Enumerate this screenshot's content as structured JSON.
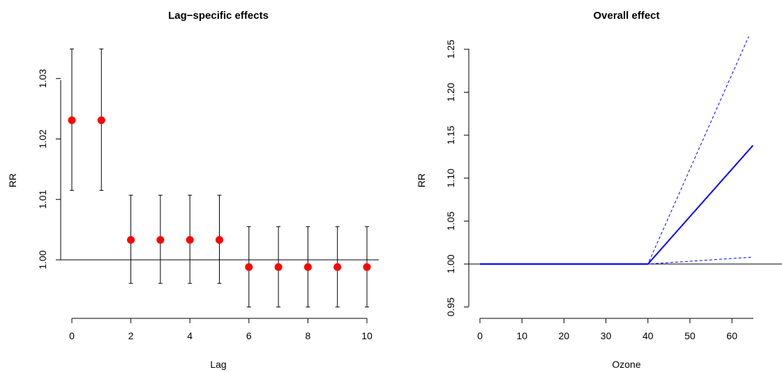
{
  "chart_data": [
    {
      "type": "scatter",
      "title": "Lag−specific effects",
      "xlabel": "Lag",
      "ylabel": "RR",
      "xlim": [
        0,
        10
      ],
      "ylim": [
        0.9977,
        1.0349
      ],
      "x_ticks": [
        0,
        2,
        4,
        6,
        8,
        10
      ],
      "y_ticks": [
        1.0,
        1.01,
        1.02,
        1.03
      ],
      "reference_line": 1.0,
      "point_color": "#ff0000",
      "error_bar_color": "#000000",
      "points": [
        {
          "x": 0,
          "y": 1.0231,
          "lower": 1.0115,
          "upper": 1.0349
        },
        {
          "x": 1,
          "y": 1.0231,
          "lower": 1.0115,
          "upper": 1.0349
        },
        {
          "x": 2,
          "y": 1.0033,
          "lower": 0.9961,
          "upper": 1.0107
        },
        {
          "x": 3,
          "y": 1.0033,
          "lower": 0.9961,
          "upper": 1.0107
        },
        {
          "x": 4,
          "y": 1.0033,
          "lower": 0.9961,
          "upper": 1.0107
        },
        {
          "x": 5,
          "y": 1.0033,
          "lower": 0.9961,
          "upper": 1.0107
        },
        {
          "x": 6,
          "y": 0.9988,
          "lower": 0.9922,
          "upper": 1.0055
        },
        {
          "x": 7,
          "y": 0.9988,
          "lower": 0.9922,
          "upper": 1.0055
        },
        {
          "x": 8,
          "y": 0.9988,
          "lower": 0.9922,
          "upper": 1.0055
        },
        {
          "x": 9,
          "y": 0.9988,
          "lower": 0.9922,
          "upper": 1.0055
        },
        {
          "x": 10,
          "y": 0.9988,
          "lower": 0.9922,
          "upper": 1.0055
        }
      ]
    },
    {
      "type": "line",
      "title": "Overall effect",
      "xlabel": "Ozone",
      "ylabel": "RR",
      "xlim": [
        0,
        65
      ],
      "ylim": [
        0.95,
        1.26
      ],
      "x_ticks": [
        0,
        10,
        20,
        30,
        40,
        50,
        60
      ],
      "y_ticks": [
        0.95,
        1.0,
        1.05,
        1.1,
        1.15,
        1.2,
        1.25
      ],
      "reference_line": 1.0,
      "line_color": "#0000ff",
      "series": [
        {
          "role": "estimate",
          "style": "solid",
          "x": [
            0,
            40,
            65
          ],
          "y": [
            1.0,
            1.0,
            1.138
          ]
        },
        {
          "role": "upper",
          "style": "dashed",
          "x": [
            0,
            40,
            64
          ],
          "y": [
            1.0,
            1.0,
            1.265
          ]
        },
        {
          "role": "lower",
          "style": "dashed",
          "x": [
            0,
            40,
            65
          ],
          "y": [
            1.0,
            1.0,
            1.008
          ]
        }
      ]
    }
  ]
}
